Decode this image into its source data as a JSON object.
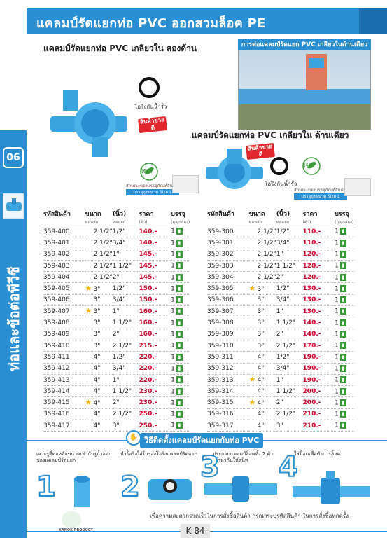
{
  "header": {
    "title": "แคลมป์รัดแยกท่อ PVC ออกสวมล็อค PE"
  },
  "side": {
    "number": "06",
    "label": "ท่อและข้อต่อพีวีซี"
  },
  "section_left": {
    "title": "แคลมป์รัดแยกท่อ PVC เกลียวใน สองด้าน",
    "oring": "โอริงกันน้ำรั่ว",
    "badge": "สินค้าขายดี",
    "leaf": "ไร้ซีล",
    "pack_note": "สักษณะของบรรจุภัณฑ์สินค้า",
    "pack_chip": "บรรจุถุงขนาด Size L"
  },
  "section_right": {
    "title": "แคลมป์รัดแยกท่อ PVC เกลียวใน ด้านเดียว",
    "oring": "โอริงกันน้ำรั่ว",
    "badge": "สินค้าขายดี",
    "leaf": "ไร้ซีล",
    "pack_note": "สักษณะของบรรจุภัณฑ์สินค้า",
    "pack_chip": "บรรจุถุงขนาด Size L"
  },
  "photo": {
    "title": "การต่อแคลมป์รัดแยก PVC เกลียวในด้านเดียว"
  },
  "table_headers": {
    "code": "รหัสสินค้า",
    "size": "ขนาด",
    "size_unit": "(นิ้ว)",
    "pipe": "ท่อหลัก",
    "thread": "ท่อแยก",
    "price": "ราคา",
    "price_unit": "(ตัว)",
    "pack": "บรรจุ",
    "pack_unit": "(ถุง/กล่อง)"
  },
  "left_table": [
    {
      "code": "359-400",
      "star": false,
      "main": "2 1/2\"",
      "branch": "1/2\"",
      "price": "140.-",
      "pack": "1"
    },
    {
      "code": "359-401",
      "star": false,
      "main": "2 1/2\"",
      "branch": "3/4\"",
      "price": "140.-",
      "pack": "1"
    },
    {
      "code": "359-402",
      "star": false,
      "main": "2 1/2\"",
      "branch": "1\"",
      "price": "145.-",
      "pack": "1"
    },
    {
      "code": "359-403",
      "star": false,
      "main": "2 1/2\"",
      "branch": "1 1/2\"",
      "price": "145.-",
      "pack": "1"
    },
    {
      "code": "359-404",
      "star": false,
      "main": "2 1/2\"",
      "branch": "2\"",
      "price": "145.-",
      "pack": "1"
    },
    {
      "code": "359-405",
      "star": true,
      "main": "3\"",
      "branch": "1/2\"",
      "price": "150.-",
      "pack": "1"
    },
    {
      "code": "359-406",
      "star": false,
      "main": "3\"",
      "branch": "3/4\"",
      "price": "150.-",
      "pack": "1"
    },
    {
      "code": "359-407",
      "star": true,
      "main": "3\"",
      "branch": "1\"",
      "price": "160.-",
      "pack": "1"
    },
    {
      "code": "359-408",
      "star": false,
      "main": "3\"",
      "branch": "1 1/2\"",
      "price": "160.-",
      "pack": "1"
    },
    {
      "code": "359-409",
      "star": false,
      "main": "3\"",
      "branch": "2\"",
      "price": "160.-",
      "pack": "1"
    },
    {
      "code": "359-410",
      "star": false,
      "main": "3\"",
      "branch": "2 1/2\"",
      "price": "215.-",
      "pack": "1"
    },
    {
      "code": "359-411",
      "star": false,
      "main": "4\"",
      "branch": "1/2\"",
      "price": "220.-",
      "pack": "1"
    },
    {
      "code": "359-412",
      "star": false,
      "main": "4\"",
      "branch": "3/4\"",
      "price": "220.-",
      "pack": "1"
    },
    {
      "code": "359-413",
      "star": false,
      "main": "4\"",
      "branch": "1\"",
      "price": "220.-",
      "pack": "1"
    },
    {
      "code": "359-414",
      "star": false,
      "main": "4\"",
      "branch": "1 1/2\"",
      "price": "230.-",
      "pack": "1"
    },
    {
      "code": "359-415",
      "star": true,
      "main": "4\"",
      "branch": "2\"",
      "price": "230.-",
      "pack": "1"
    },
    {
      "code": "359-416",
      "star": false,
      "main": "4\"",
      "branch": "2 1/2\"",
      "price": "250.-",
      "pack": "1"
    },
    {
      "code": "359-417",
      "star": false,
      "main": "4\"",
      "branch": "3\"",
      "price": "250.-",
      "pack": "1"
    }
  ],
  "right_table": [
    {
      "code": "359-300",
      "star": false,
      "main": "2 1/2\"",
      "branch": "1/2\"",
      "price": "110.-",
      "pack": "1"
    },
    {
      "code": "359-301",
      "star": false,
      "main": "2 1/2\"",
      "branch": "3/4\"",
      "price": "110.-",
      "pack": "1"
    },
    {
      "code": "359-302",
      "star": false,
      "main": "2 1/2\"",
      "branch": "1\"",
      "price": "120.-",
      "pack": "1"
    },
    {
      "code": "359-303",
      "star": false,
      "main": "2 1/2\"",
      "branch": "1 1/2\"",
      "price": "120.-",
      "pack": "1"
    },
    {
      "code": "359-304",
      "star": false,
      "main": "2 1/2\"",
      "branch": "2\"",
      "price": "120.-",
      "pack": "1"
    },
    {
      "code": "359-305",
      "star": true,
      "main": "3\"",
      "branch": "1/2\"",
      "price": "130.-",
      "pack": "1"
    },
    {
      "code": "359-306",
      "star": false,
      "main": "3\"",
      "branch": "3/4\"",
      "price": "130.-",
      "pack": "1"
    },
    {
      "code": "359-307",
      "star": false,
      "main": "3\"",
      "branch": "1\"",
      "price": "130.-",
      "pack": "1"
    },
    {
      "code": "359-308",
      "star": false,
      "main": "3\"",
      "branch": "1 1/2\"",
      "price": "140.-",
      "pack": "1"
    },
    {
      "code": "359-309",
      "star": false,
      "main": "3\"",
      "branch": "2\"",
      "price": "140.-",
      "pack": "1"
    },
    {
      "code": "359-310",
      "star": false,
      "main": "3\"",
      "branch": "2 1/2\"",
      "price": "170.-",
      "pack": "1"
    },
    {
      "code": "359-311",
      "star": false,
      "main": "4\"",
      "branch": "1/2\"",
      "price": "190.-",
      "pack": "1"
    },
    {
      "code": "359-312",
      "star": false,
      "main": "4\"",
      "branch": "3/4\"",
      "price": "190.-",
      "pack": "1"
    },
    {
      "code": "359-313",
      "star": true,
      "main": "4\"",
      "branch": "1\"",
      "price": "190.-",
      "pack": "1"
    },
    {
      "code": "359-314",
      "star": false,
      "main": "4\"",
      "branch": "1 1/2\"",
      "price": "200.-",
      "pack": "1"
    },
    {
      "code": "359-315",
      "star": true,
      "main": "4\"",
      "branch": "2\"",
      "price": "200.-",
      "pack": "1"
    },
    {
      "code": "359-316",
      "star": false,
      "main": "4\"",
      "branch": "2 1/2\"",
      "price": "210.-",
      "pack": "1"
    },
    {
      "code": "359-317",
      "star": false,
      "main": "4\"",
      "branch": "3\"",
      "price": "210.-",
      "pack": "1"
    }
  ],
  "howto": {
    "title": "วิธีติดตั้งแคลมป์รัดแยกกับท่อ PVC",
    "steps": [
      {
        "num": "1",
        "text": "เจาะรูที่ท่อหลักขนาดเท่ากับรูน้ำออกของแคลมป์รัดแยก"
      },
      {
        "num": "2",
        "text": "นำโอริงใส่ในร่องโอริงแคลมป์รัดแยก"
      },
      {
        "num": "3",
        "text": "ประกอบแคลมป์ล็อคทั้ง 2 ตัวเข้าหากันให้สนิท"
      },
      {
        "num": "4",
        "text": "ใส่น็อตเพื่อทำการล็อค"
      }
    ]
  },
  "footer": {
    "note": "เพื่อความสะดวกรวดเร็วในการสั่งซื้อสินค้า กรุณาระบุรหัสสินค้า ในการสั่งซื้อทุกครั้ง",
    "page": "K 84",
    "logo": "KANOK PRODUCT"
  },
  "colors": {
    "primary": "#2a8fd2",
    "price": "#c8102e",
    "star": "#f4b400",
    "pack": "#3a9a3a"
  },
  "icons": {
    "star": "star-icon",
    "pack": "pack-icon"
  }
}
